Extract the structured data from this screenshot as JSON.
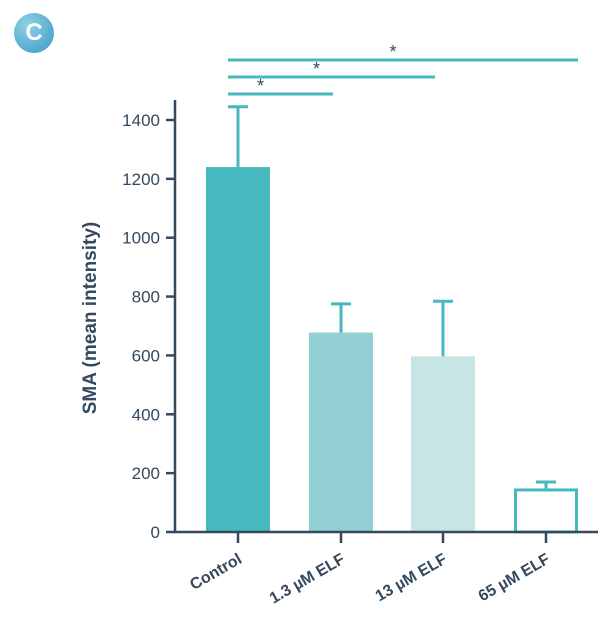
{
  "panel_label": "C",
  "chart_data": {
    "type": "bar",
    "categories": [
      "Control",
      "1.3 µM ELF",
      "13 µM ELF",
      "65 µM ELF"
    ],
    "values": [
      1240,
      678,
      597,
      148
    ],
    "errors": [
      205,
      97,
      187,
      22
    ],
    "ylabel": "SMA (mean intensity)",
    "xlabel": "",
    "ylim": [
      0,
      1450
    ],
    "yticks": [
      0,
      200,
      400,
      600,
      800,
      1000,
      1200,
      1400
    ],
    "grid": false,
    "legend": "none",
    "bar_styles": [
      {
        "fill": "#46b9be",
        "stroke": "#46b9be"
      },
      {
        "fill": "#92d0d4",
        "stroke": "#92d0d4"
      },
      {
        "fill": "#c8e5e6",
        "stroke": "#c8e5e6"
      },
      {
        "fill": "#ffffff",
        "stroke": "#46b9be"
      }
    ],
    "error_color": "#46b9be",
    "axis_color": "#34495e",
    "significance": [
      {
        "from": "Control",
        "to": "1.3 µM ELF",
        "label": "*"
      },
      {
        "from": "Control",
        "to": "13 µM ELF",
        "label": "*"
      },
      {
        "from": "Control",
        "to": "65 µM ELF",
        "label": "*"
      }
    ]
  }
}
